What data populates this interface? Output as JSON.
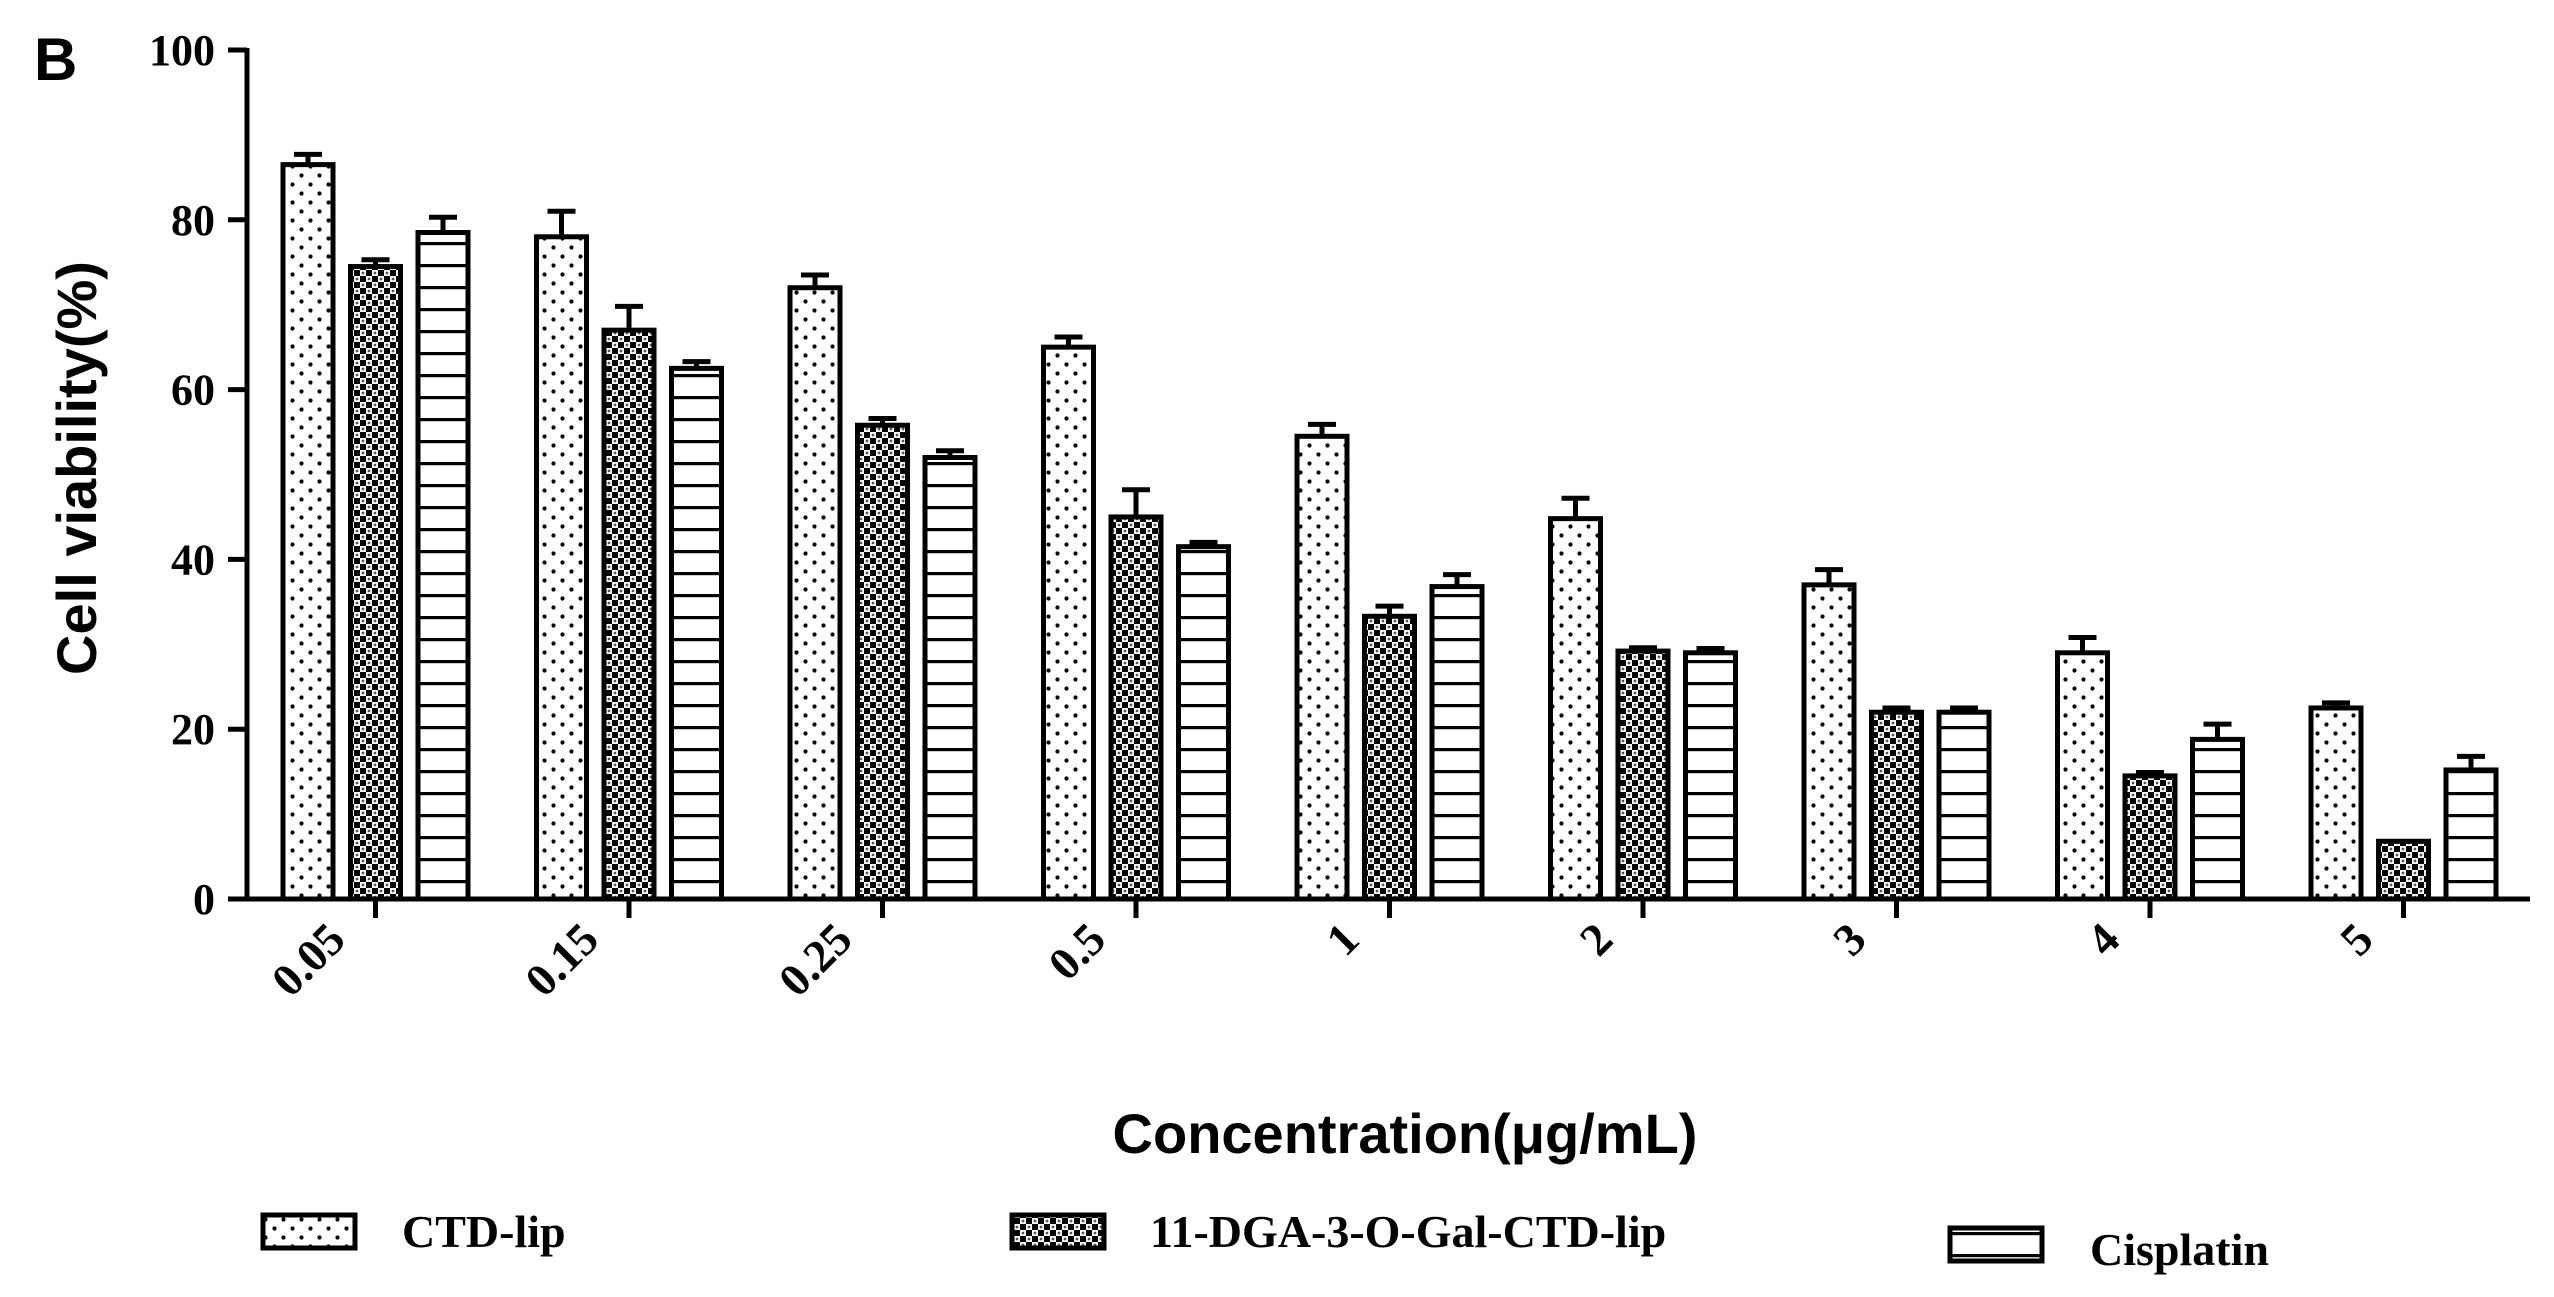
{
  "panel_label": "B",
  "colors": {
    "ink": "#000000",
    "background": "#ffffff"
  },
  "chart_data": {
    "type": "bar",
    "ylabel": "Cell viability(%)",
    "xlabel": "Concentration(μg/mL)",
    "ylim": [
      0,
      100
    ],
    "yticks": [
      "0",
      "20",
      "40",
      "60",
      "80",
      "100"
    ],
    "categories": [
      "0.05",
      "0.15",
      "0.25",
      "0.5",
      "1",
      "2",
      "3",
      "4",
      "5"
    ],
    "legend_position": "bottom",
    "grid": false,
    "series": [
      {
        "name": "CTD-lip",
        "pattern": "dots",
        "values": [
          86.5,
          78,
          72,
          65,
          54.5,
          44.8,
          37,
          29,
          22.5
        ],
        "errors": [
          1.2,
          3,
          1.5,
          1.2,
          1.4,
          2.4,
          1.8,
          1.8,
          0.6
        ]
      },
      {
        "name": "11-DGA-3-O-Gal-CTD-lip",
        "pattern": "crosshatch",
        "values": [
          74.5,
          67,
          55.8,
          45,
          33.3,
          29.2,
          22,
          14.5,
          6.8
        ],
        "errors": [
          0.8,
          2.8,
          0.8,
          3.2,
          1.2,
          0.4,
          0.5,
          0.4,
          0.3
        ],
        "show_error": [
          true,
          true,
          true,
          true,
          true,
          true,
          true,
          true,
          false
        ]
      },
      {
        "name": "Cisplatin",
        "pattern": "horizontal-lines",
        "values": [
          78.5,
          62.5,
          52,
          41.5,
          36.8,
          29,
          22,
          18.8,
          15.2
        ],
        "errors": [
          1.8,
          0.8,
          0.8,
          0.5,
          1.4,
          0.5,
          0.5,
          1.8,
          1.6
        ]
      }
    ]
  }
}
